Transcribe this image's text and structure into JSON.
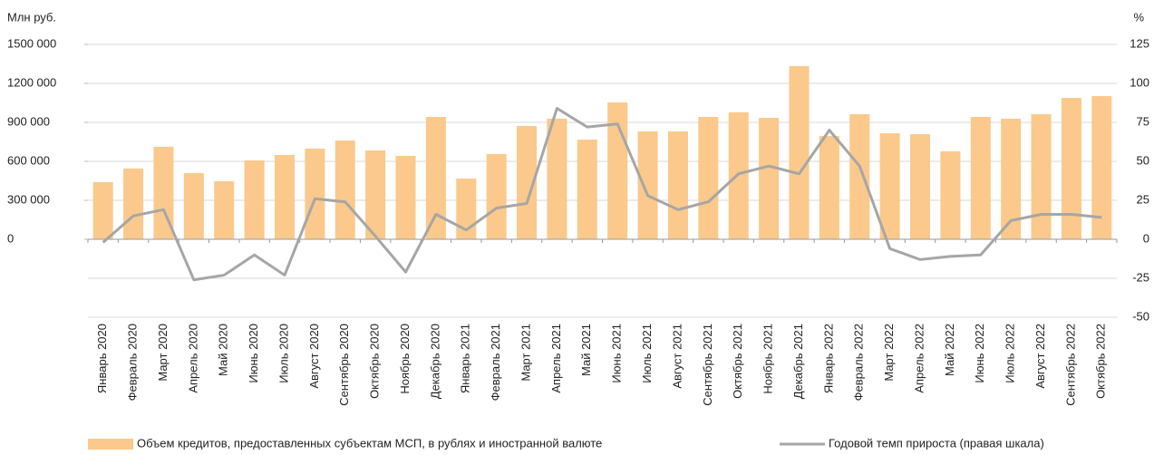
{
  "chart_data": {
    "type": "bar-line",
    "y_label": "Млн руб.",
    "y2_label": "%",
    "categories": [
      "Январь 2020",
      "Февраль 2020",
      "Март 2020",
      "Апрель 2020",
      "Май 2020",
      "Июнь 2020",
      "Июль 2020",
      "Август 2020",
      "Сентябрь 2020",
      "Октябрь 2020",
      "Ноябрь 2020",
      "Декабрь 2020",
      "Январь 2021",
      "Февраль 2021",
      "Март 2021",
      "Апрель 2021",
      "Май 2021",
      "Июнь 2021",
      "Июль 2021",
      "Август 2021",
      "Сентябрь 2021",
      "Октябрь 2021",
      "Ноябрь 2021",
      "Декабрь 2021",
      "Январь 2022",
      "Февраль 2022",
      "Март 2022",
      "Апрель 2022",
      "Май 2022",
      "Июнь 2022",
      "Июль 2022",
      "Август 2022",
      "Сентябрь 2022",
      "Октябрь 2022"
    ],
    "series": [
      {
        "name": "Объем кредитов, предоставленных субъектам МСП, в рублях и иностранной валюте",
        "type": "bar",
        "color": "#fbc98b",
        "values": [
          440000,
          545000,
          712000,
          510000,
          447000,
          607000,
          649000,
          698000,
          760000,
          684000,
          642000,
          942000,
          467000,
          656000,
          872000,
          928000,
          767000,
          1053000,
          830000,
          830000,
          942000,
          977000,
          935000,
          1333000,
          795000,
          963000,
          816000,
          809000,
          677000,
          942000,
          928000,
          963000,
          1088000,
          1102000
        ]
      },
      {
        "name": "Годовой темп прироста (правая шкала)",
        "type": "line",
        "axis": "y2",
        "color": "#a6a6a6",
        "values": [
          -2,
          15,
          19,
          -26,
          -23,
          -10,
          -23,
          26,
          24,
          2,
          -21,
          16,
          6,
          20,
          23,
          84,
          72,
          74,
          28,
          19,
          24,
          42,
          47,
          42,
          70,
          47,
          -6,
          -13,
          -11,
          -10,
          12,
          16,
          16,
          14
        ]
      }
    ],
    "ylim": [
      -600000,
      1500000
    ],
    "yticks": [
      {
        "value": 0,
        "label": "0"
      },
      {
        "value": 300000,
        "label": "300 000"
      },
      {
        "value": 600000,
        "label": "600 000"
      },
      {
        "value": 900000,
        "label": "900 000"
      },
      {
        "value": 1200000,
        "label": "1200 000"
      },
      {
        "value": 1500000,
        "label": "1500 000"
      }
    ],
    "y2lim": [
      -50,
      125
    ],
    "y2ticks": [
      -50,
      -25,
      0,
      25,
      50,
      75,
      100,
      125
    ],
    "grid": true
  }
}
